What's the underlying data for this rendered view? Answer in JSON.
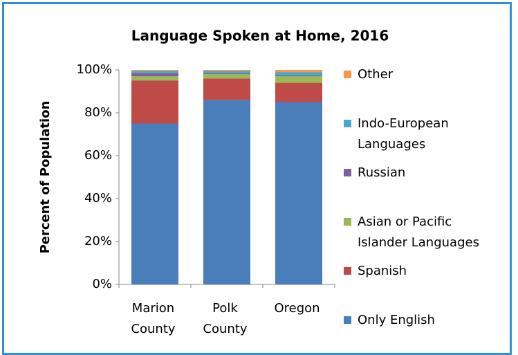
{
  "chart_data": {
    "type": "stacked_bar",
    "title": "Language Spoken at Home, 2016",
    "y_label": "Percent of Population",
    "categories": [
      "Marion County",
      "Polk County",
      "Oregon"
    ],
    "series": [
      {
        "name": "Only English",
        "color": "#4a7ebb",
        "values": [
          75,
          86,
          85
        ]
      },
      {
        "name": "Spanish",
        "color": "#be4b48",
        "values": [
          20,
          10,
          9
        ]
      },
      {
        "name": "Asian or Pacific Islander Languages",
        "color": "#98b954",
        "values": [
          2,
          2,
          3
        ]
      },
      {
        "name": "Russian",
        "color": "#7d60a0",
        "values": [
          1.5,
          0.5,
          0.5
        ]
      },
      {
        "name": "Indo-European Languages",
        "color": "#46aac5",
        "values": [
          1,
          1,
          1.5
        ]
      },
      {
        "name": "Other",
        "color": "#f79646",
        "values": [
          0.5,
          0.5,
          1
        ]
      }
    ],
    "ylim": [
      0,
      100
    ],
    "yticks": [
      {
        "value": 0,
        "label": "0%"
      },
      {
        "value": 20,
        "label": "20%"
      },
      {
        "value": 40,
        "label": "40%"
      },
      {
        "value": 60,
        "label": "60%"
      },
      {
        "value": 80,
        "label": "80%"
      },
      {
        "value": 100,
        "label": "100%"
      }
    ],
    "legend": "right"
  }
}
